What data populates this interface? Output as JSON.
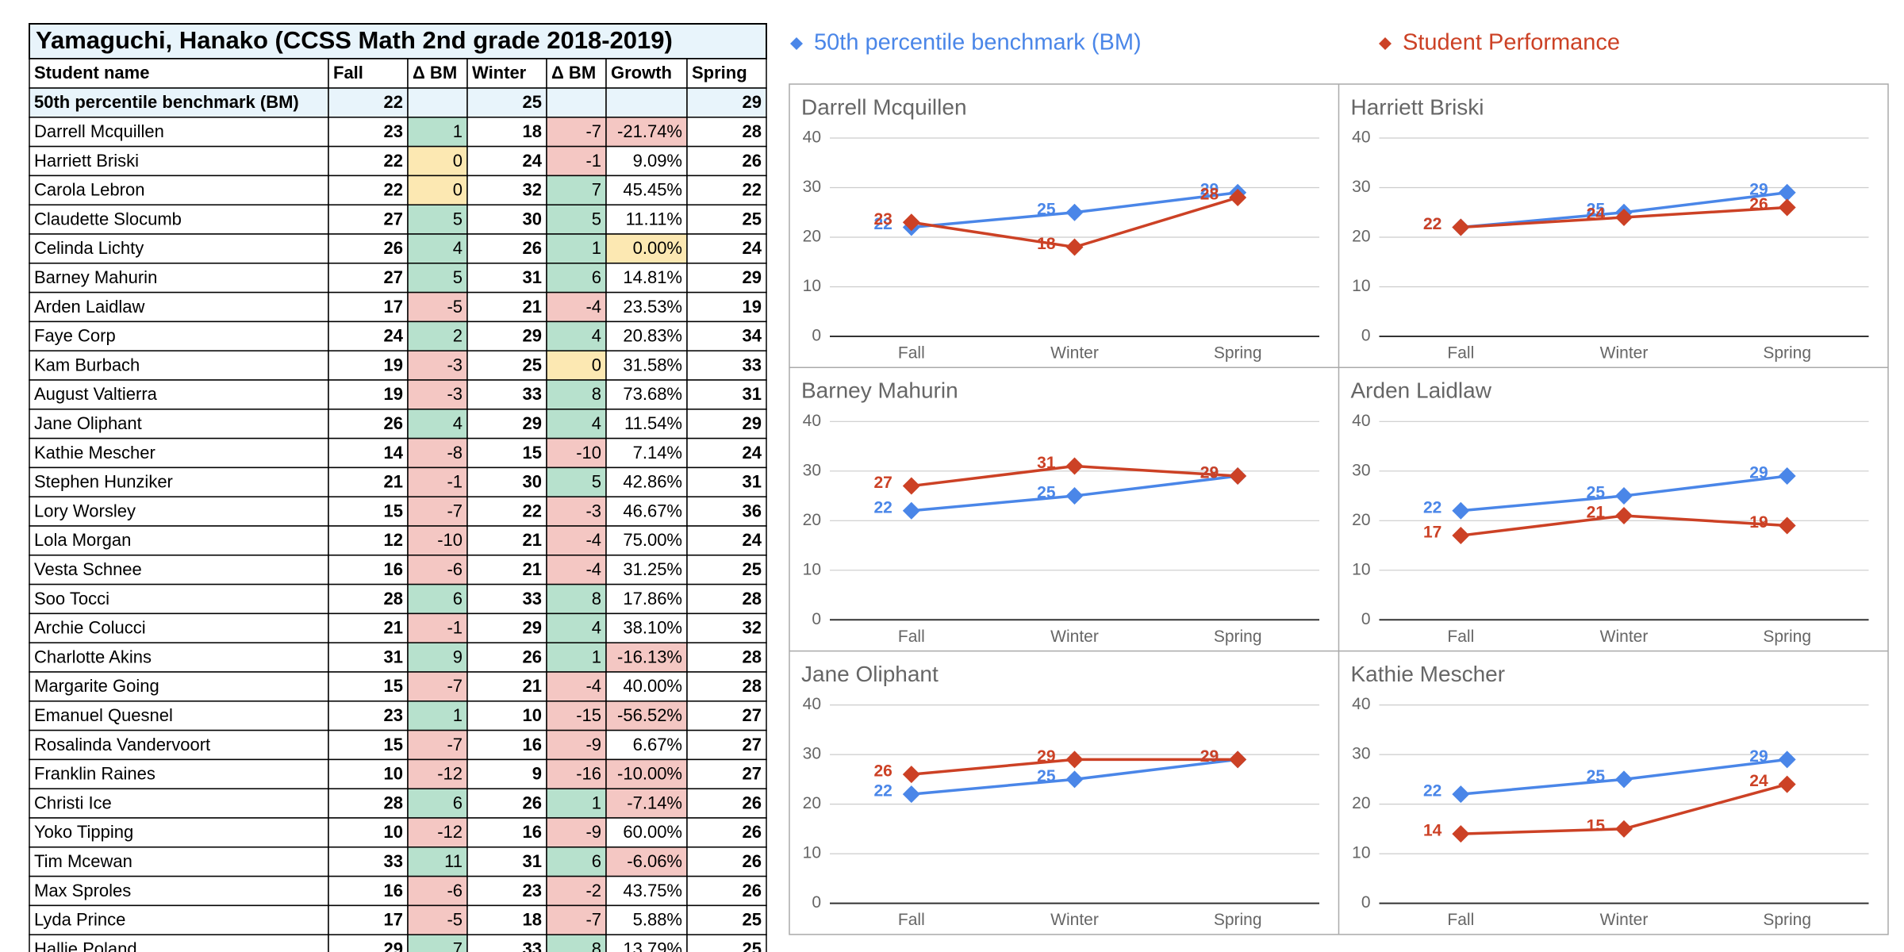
{
  "table": {
    "title": "Yamaguchi, Hanako (CCSS Math 2nd grade 2018-2019)",
    "header": [
      "Student name",
      "Fall",
      "Δ BM",
      "Winter",
      "Δ BM",
      "Growth",
      "Spring"
    ],
    "rows": [
      [
        "50th percentile benchmark (BM)",
        22,
        null,
        25,
        null,
        null,
        29
      ],
      [
        "Darrell Mcquillen",
        23,
        1,
        18,
        -7,
        "-21.74%",
        28
      ],
      [
        "Harriett Briski",
        22,
        0,
        24,
        -1,
        "9.09%",
        26
      ],
      [
        "Carola Lebron",
        22,
        0,
        32,
        7,
        "45.45%",
        22
      ],
      [
        "Claudette Slocumb",
        27,
        5,
        30,
        5,
        "11.11%",
        25
      ],
      [
        "Celinda Lichty",
        26,
        4,
        26,
        1,
        "0.00%",
        24
      ],
      [
        "Barney Mahurin",
        27,
        5,
        31,
        6,
        "14.81%",
        29
      ],
      [
        "Arden Laidlaw",
        17,
        -5,
        21,
        -4,
        "23.53%",
        19
      ],
      [
        "Faye Corp",
        24,
        2,
        29,
        4,
        "20.83%",
        34
      ],
      [
        "Kam Burbach",
        19,
        -3,
        25,
        0,
        "31.58%",
        33
      ],
      [
        "August Valtierra",
        19,
        -3,
        33,
        8,
        "73.68%",
        31
      ],
      [
        "Jane Oliphant",
        26,
        4,
        29,
        4,
        "11.54%",
        29
      ],
      [
        "Kathie Mescher",
        14,
        -8,
        15,
        -10,
        "7.14%",
        24
      ],
      [
        "Stephen Hunziker",
        21,
        -1,
        30,
        5,
        "42.86%",
        31
      ],
      [
        "Lory Worsley",
        15,
        -7,
        22,
        -3,
        "46.67%",
        36
      ],
      [
        "Lola Morgan",
        12,
        -10,
        21,
        -4,
        "75.00%",
        24
      ],
      [
        "Vesta Schnee",
        16,
        -6,
        21,
        -4,
        "31.25%",
        25
      ],
      [
        "Soo Tocci",
        28,
        6,
        33,
        8,
        "17.86%",
        28
      ],
      [
        "Archie Colucci",
        21,
        -1,
        29,
        4,
        "38.10%",
        32
      ],
      [
        "Charlotte Akins",
        31,
        9,
        26,
        1,
        "-16.13%",
        28
      ],
      [
        "Margarite Going",
        15,
        -7,
        21,
        -4,
        "40.00%",
        28
      ],
      [
        "Emanuel Quesnel",
        23,
        1,
        10,
        -15,
        "-56.52%",
        27
      ],
      [
        "Rosalinda Vandervoort",
        15,
        -7,
        16,
        -9,
        "6.67%",
        27
      ],
      [
        "Franklin Raines",
        10,
        -12,
        9,
        -16,
        "-10.00%",
        27
      ],
      [
        "Christi Ice",
        28,
        6,
        26,
        1,
        "-7.14%",
        26
      ],
      [
        "Yoko Tipping",
        10,
        -12,
        16,
        -9,
        "60.00%",
        26
      ],
      [
        "Tim Mcewan",
        33,
        11,
        31,
        6,
        "-6.06%",
        26
      ],
      [
        "Max Sproles",
        16,
        -6,
        23,
        -2,
        "43.75%",
        26
      ],
      [
        "Lyda Prince",
        17,
        -5,
        18,
        -7,
        "5.88%",
        25
      ],
      [
        "Hallie Poland",
        29,
        7,
        33,
        8,
        "13.79%",
        25
      ]
    ]
  },
  "legend": [
    {
      "name": "50th percentile benchmark (BM)",
      "color": "#4a86e8"
    },
    {
      "name": "Student Performance",
      "color": "#cc4125"
    }
  ],
  "chart_data": [
    {
      "type": "line",
      "title": "Darrell Mcquillen",
      "categories": [
        "Fall",
        "Winter",
        "Spring"
      ],
      "ylim": [
        0,
        40
      ],
      "yticks": [
        0,
        10,
        20,
        30,
        40
      ],
      "grid": true,
      "series": [
        {
          "color": "#4a86e8",
          "values": [
            22,
            25,
            29
          ]
        },
        {
          "color": "#cc4125",
          "values": [
            23,
            18,
            28
          ]
        }
      ]
    },
    {
      "type": "line",
      "title": "Harriett Briski",
      "categories": [
        "Fall",
        "Winter",
        "Spring"
      ],
      "ylim": [
        0,
        40
      ],
      "yticks": [
        0,
        10,
        20,
        30,
        40
      ],
      "grid": true,
      "series": [
        {
          "color": "#4a86e8",
          "values": [
            22,
            25,
            29
          ]
        },
        {
          "color": "#cc4125",
          "values": [
            22,
            24,
            26
          ]
        }
      ]
    },
    {
      "type": "line",
      "title": "Barney Mahurin",
      "categories": [
        "Fall",
        "Winter",
        "Spring"
      ],
      "ylim": [
        0,
        40
      ],
      "yticks": [
        0,
        10,
        20,
        30,
        40
      ],
      "grid": true,
      "series": [
        {
          "color": "#4a86e8",
          "values": [
            22,
            25,
            29
          ]
        },
        {
          "color": "#cc4125",
          "values": [
            27,
            31,
            29
          ]
        }
      ]
    },
    {
      "type": "line",
      "title": "Arden Laidlaw",
      "categories": [
        "Fall",
        "Winter",
        "Spring"
      ],
      "ylim": [
        0,
        40
      ],
      "yticks": [
        0,
        10,
        20,
        30,
        40
      ],
      "grid": true,
      "series": [
        {
          "color": "#4a86e8",
          "values": [
            22,
            25,
            29
          ]
        },
        {
          "color": "#cc4125",
          "values": [
            17,
            21,
            19
          ]
        }
      ]
    },
    {
      "type": "line",
      "title": "Jane Oliphant",
      "categories": [
        "Fall",
        "Winter",
        "Spring"
      ],
      "ylim": [
        0,
        40
      ],
      "yticks": [
        0,
        10,
        20,
        30,
        40
      ],
      "grid": true,
      "series": [
        {
          "color": "#4a86e8",
          "values": [
            22,
            25,
            29
          ]
        },
        {
          "color": "#cc4125",
          "values": [
            26,
            29,
            29
          ]
        }
      ]
    },
    {
      "type": "line",
      "title": "Kathie Mescher",
      "categories": [
        "Fall",
        "Winter",
        "Spring"
      ],
      "ylim": [
        0,
        40
      ],
      "yticks": [
        0,
        10,
        20,
        30,
        40
      ],
      "grid": true,
      "series": [
        {
          "color": "#4a86e8",
          "values": [
            22,
            25,
            29
          ]
        },
        {
          "color": "#cc4125",
          "values": [
            14,
            15,
            24
          ]
        }
      ]
    }
  ]
}
